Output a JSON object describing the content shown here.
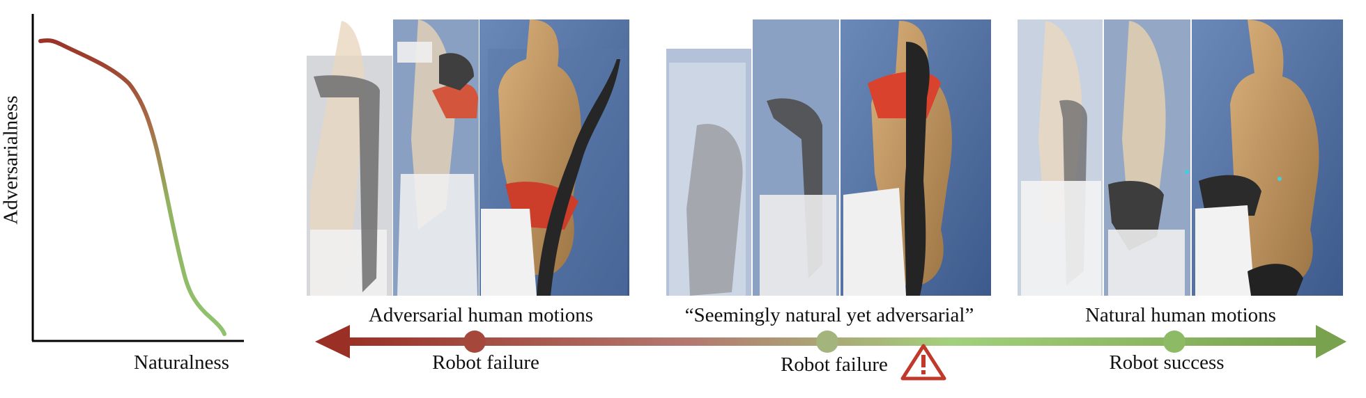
{
  "plot": {
    "ylabel": "Adversarialness",
    "xlabel": "Naturalness"
  },
  "groups": [
    {
      "caption": "Adversarial human motions",
      "outcome": "Robot failure"
    },
    {
      "caption": "“Seemingly natural yet adversarial”",
      "outcome": "Robot failure"
    },
    {
      "caption": "Natural human motions",
      "outcome": "Robot success"
    }
  ],
  "warning_icon": "warning-triangle-icon",
  "colors": {
    "adversarial": "#9a3a2e",
    "natural": "#7fae55",
    "warning": "#c0392b",
    "scene_floor": "#4d6b9c",
    "mannequin": "#c9a06e"
  }
}
